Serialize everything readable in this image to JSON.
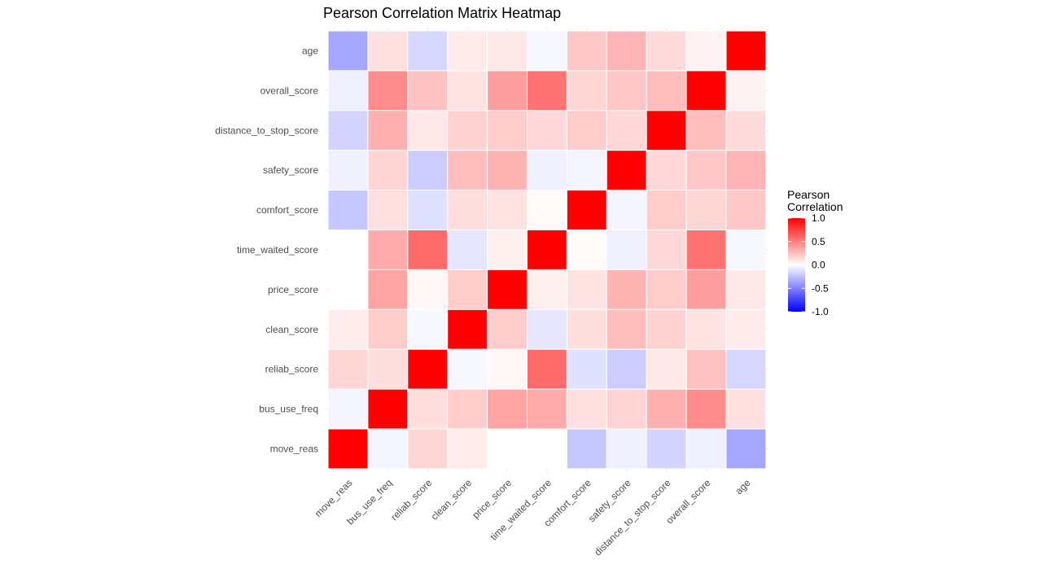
{
  "chart_data": {
    "type": "heatmap",
    "title": "Pearson Correlation Matrix Heatmap",
    "x_labels": [
      "move_reas",
      "bus_use_freq",
      "reliab_score",
      "clean_score",
      "price_score",
      "time_waited_score",
      "comfort_score",
      "safety_score",
      "distance_to_stop_score",
      "overall_score",
      "age"
    ],
    "y_labels_top_to_bottom": [
      "age",
      "overall_score",
      "distance_to_stop_score",
      "safety_score",
      "comfort_score",
      "time_waited_score",
      "price_score",
      "clean_score",
      "reliab_score",
      "bus_use_freq",
      "move_reas"
    ],
    "variables": [
      "move_reas",
      "bus_use_freq",
      "reliab_score",
      "clean_score",
      "price_score",
      "time_waited_score",
      "comfort_score",
      "safety_score",
      "distance_to_stop_score",
      "overall_score",
      "age"
    ],
    "matrix": [
      [
        1.0,
        -0.04,
        0.16,
        0.07,
        0.0,
        0.0,
        -0.22,
        -0.06,
        -0.17,
        -0.06,
        -0.35
      ],
      [
        -0.04,
        1.0,
        0.13,
        0.2,
        0.36,
        0.33,
        0.12,
        0.17,
        0.31,
        0.45,
        0.12
      ],
      [
        0.16,
        0.13,
        1.0,
        -0.03,
        0.03,
        0.58,
        -0.12,
        -0.2,
        0.09,
        0.24,
        -0.16
      ],
      [
        0.07,
        0.2,
        -0.03,
        1.0,
        0.2,
        -0.1,
        0.13,
        0.26,
        0.18,
        0.11,
        0.08
      ],
      [
        0.0,
        0.36,
        0.03,
        0.2,
        1.0,
        0.06,
        0.11,
        0.3,
        0.2,
        0.38,
        0.09
      ],
      [
        0.0,
        0.33,
        0.58,
        -0.1,
        0.06,
        1.0,
        0.02,
        -0.06,
        0.15,
        0.55,
        -0.03
      ],
      [
        -0.22,
        0.12,
        -0.12,
        0.13,
        0.11,
        0.02,
        1.0,
        -0.04,
        0.2,
        0.16,
        0.22
      ],
      [
        -0.06,
        0.17,
        -0.2,
        0.26,
        0.3,
        -0.06,
        -0.04,
        1.0,
        0.15,
        0.22,
        0.29
      ],
      [
        -0.17,
        0.31,
        0.09,
        0.18,
        0.2,
        0.15,
        0.2,
        0.15,
        1.0,
        0.26,
        0.14
      ],
      [
        -0.06,
        0.45,
        0.24,
        0.11,
        0.38,
        0.55,
        0.16,
        0.22,
        0.26,
        1.0,
        0.05
      ],
      [
        -0.35,
        0.12,
        -0.16,
        0.08,
        0.09,
        -0.03,
        0.22,
        0.29,
        0.14,
        0.05,
        1.0
      ]
    ],
    "color_scale": {
      "low": "#0000ff",
      "mid": "#ffffff",
      "high": "#ff0000",
      "limits": [
        -1.0,
        1.0
      ]
    },
    "legend": {
      "title_lines": [
        "Pearson",
        "Correlation"
      ],
      "placement": "right",
      "breaks": [
        1.0,
        0.5,
        0.0,
        -0.5,
        -1.0
      ],
      "labels": [
        "1.0",
        "0.5",
        "0.0",
        "-0.5",
        "-1.0"
      ]
    },
    "grid": true,
    "tile_border_color": "#ffffff"
  }
}
